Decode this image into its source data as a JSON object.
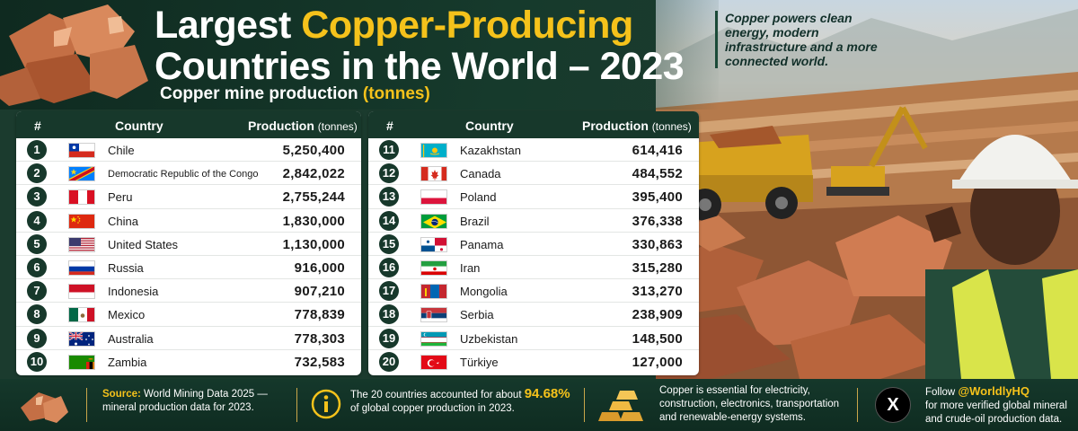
{
  "header": {
    "title_part1": "Largest ",
    "title_highlight": "Copper-Producing",
    "title_line2": "Countries in the World – 2023",
    "subtitle_main": "Copper mine production ",
    "subtitle_unit": "(tonnes)",
    "tagline": "Copper powers clean energy, modern infrastructure and a more connected world."
  },
  "table_headers": {
    "rank": "#",
    "country": "Country",
    "production": "Production",
    "unit": "(tonnes)"
  },
  "colors": {
    "dark_green": "#17382b",
    "gold": "#f5c21b",
    "white": "#ffffff"
  },
  "countries_left": [
    {
      "rank": "1",
      "name": "Chile",
      "production": "5,250,400",
      "flag": "chile-flag"
    },
    {
      "rank": "2",
      "name": "Democratic Republic of the Congo",
      "production": "2,842,022",
      "flag": "drc-flag"
    },
    {
      "rank": "3",
      "name": "Peru",
      "production": "2,755,244",
      "flag": "peru-flag"
    },
    {
      "rank": "4",
      "name": "China",
      "production": "1,830,000",
      "flag": "china-flag"
    },
    {
      "rank": "5",
      "name": "United States",
      "production": "1,130,000",
      "flag": "usa-flag"
    },
    {
      "rank": "6",
      "name": "Russia",
      "production": "916,000",
      "flag": "russia-flag"
    },
    {
      "rank": "7",
      "name": "Indonesia",
      "production": "907,210",
      "flag": "indonesia-flag"
    },
    {
      "rank": "8",
      "name": "Mexico",
      "production": "778,839",
      "flag": "mexico-flag"
    },
    {
      "rank": "9",
      "name": "Australia",
      "production": "778,303",
      "flag": "australia-flag"
    },
    {
      "rank": "10",
      "name": "Zambia",
      "production": "732,583",
      "flag": "zambia-flag"
    }
  ],
  "countries_right": [
    {
      "rank": "11",
      "name": "Kazakhstan",
      "production": "614,416",
      "flag": "kazakhstan-flag"
    },
    {
      "rank": "12",
      "name": "Canada",
      "production": "484,552",
      "flag": "canada-flag"
    },
    {
      "rank": "13",
      "name": "Poland",
      "production": "395,400",
      "flag": "poland-flag"
    },
    {
      "rank": "14",
      "name": "Brazil",
      "production": "376,338",
      "flag": "brazil-flag"
    },
    {
      "rank": "15",
      "name": "Panama",
      "production": "330,863",
      "flag": "panama-flag"
    },
    {
      "rank": "16",
      "name": "Iran",
      "production": "315,280",
      "flag": "iran-flag"
    },
    {
      "rank": "17",
      "name": "Mongolia",
      "production": "313,270",
      "flag": "mongolia-flag"
    },
    {
      "rank": "18",
      "name": "Serbia",
      "production": "238,909",
      "flag": "serbia-flag"
    },
    {
      "rank": "19",
      "name": "Uzbekistan",
      "production": "148,500",
      "flag": "uzbekistan-flag"
    },
    {
      "rank": "20",
      "name": "Türkiye",
      "production": "127,000",
      "flag": "turkiye-flag"
    }
  ],
  "footer": {
    "source_label": "Source:",
    "source_text": " World Mining Data 2025 —",
    "source_text2": "mineral production data for 2023.",
    "share_text1": "The 20 countries accounted for about ",
    "share_value": "94.68%",
    "share_text2": "of global copper production in 2023.",
    "uses_line1": "Copper is essential for electricity,",
    "uses_line2": "construction, electronics, transportation",
    "uses_line3": "and renewable-energy systems.",
    "follow_prefix": "Follow ",
    "follow_handle": "@WorldlyHQ",
    "follow_line2": "for more verified global mineral",
    "follow_line3": "and crude-oil production data."
  }
}
